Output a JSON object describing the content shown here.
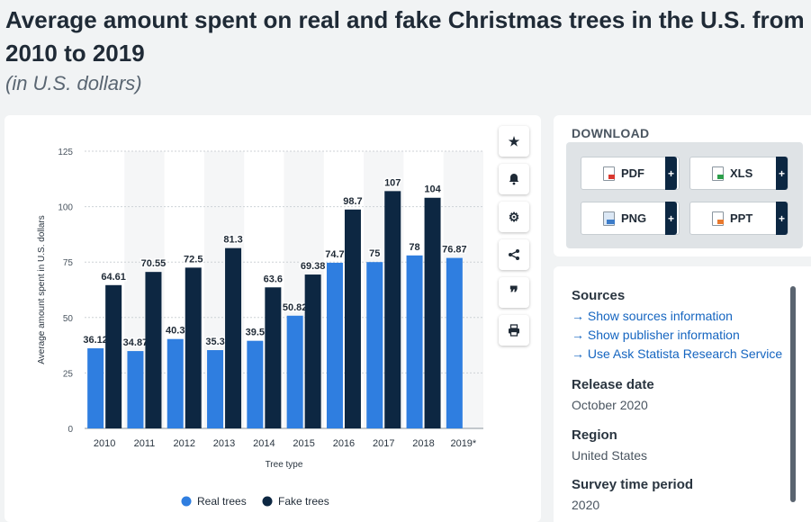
{
  "header": {
    "title": "Average amount spent on real and fake Christmas trees in the U.S. from 2010 to 2019",
    "subtitle": "(in U.S. dollars)"
  },
  "toolbar": {
    "items": [
      {
        "name": "favorite",
        "icon": "star-icon"
      },
      {
        "name": "notification",
        "icon": "bell-icon"
      },
      {
        "name": "settings",
        "icon": "gear-icon"
      },
      {
        "name": "share",
        "icon": "share-icon"
      },
      {
        "name": "cite",
        "icon": "quote-icon"
      },
      {
        "name": "print",
        "icon": "printer-icon"
      }
    ]
  },
  "download": {
    "title": "DOWNLOAD",
    "buttons": [
      {
        "label": "PDF",
        "plus": "+"
      },
      {
        "label": "XLS",
        "plus": "+"
      },
      {
        "label": "PNG",
        "plus": "+"
      },
      {
        "label": "PPT",
        "plus": "+"
      }
    ]
  },
  "info": {
    "sources_heading": "Sources",
    "links": [
      "Show sources information",
      "Show publisher information",
      "Use Ask Statista Research Service"
    ],
    "release_heading": "Release date",
    "release_value": "October 2020",
    "region_heading": "Region",
    "region_value": "United States",
    "survey_heading": "Survey time period",
    "survey_value": "2020"
  },
  "chart_data": {
    "type": "bar",
    "categories": [
      "2010",
      "2011",
      "2012",
      "2013",
      "2014",
      "2015",
      "2016",
      "2017",
      "2018",
      "2019*"
    ],
    "series": [
      {
        "name": "Real trees",
        "color": "#2f7ee0",
        "values": [
          36.12,
          34.87,
          40.3,
          35.3,
          39.5,
          50.82,
          74.7,
          75,
          78,
          76.87
        ],
        "labels": [
          "36.12",
          "34.87",
          "40.3",
          "35.3",
          "39.5",
          "50.82",
          "74.7",
          "75",
          "78",
          "76.87"
        ]
      },
      {
        "name": "Fake trees",
        "color": "#0d2742",
        "values": [
          64.61,
          70.55,
          72.5,
          81.3,
          63.6,
          69.38,
          98.7,
          107,
          104,
          null
        ],
        "labels": [
          "64.61",
          "70.55",
          "72.5",
          "81.3",
          "63.6",
          "69.38",
          "98.7",
          "107",
          "104",
          ""
        ]
      }
    ],
    "xlabel": "Tree type",
    "ylabel": "Average amount spent in U.S. dollars",
    "ylim": [
      0,
      125
    ],
    "yticks": [
      0,
      25,
      50,
      75,
      100,
      125
    ],
    "grid": true,
    "legend": "bottom-center"
  }
}
